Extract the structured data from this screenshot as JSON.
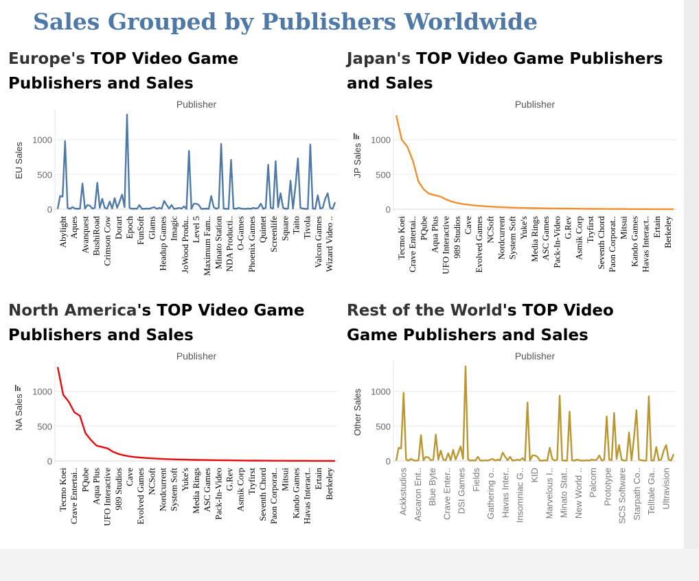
{
  "dashboard_title": "Sales Grouped by Publishers Worldwide",
  "chart_data": [
    {
      "type": "line",
      "title_region": "Europe's",
      "title_rest": " TOP Video Game Publishers and Sales",
      "header": "Publisher",
      "ylabel": "EU Sales",
      "ylim": [
        0,
        1400
      ],
      "yticks": [
        0,
        500,
        1000
      ],
      "color": "#4e79a7",
      "sorted_desc": false,
      "x_tick_style": "serif",
      "categories_labeled": [
        "Abylight",
        "Aques",
        "Avanquest",
        "BushiRoad",
        "Crimson Cow",
        "Dorart",
        "Epoch",
        "FunSoft",
        "Glams",
        "Headup Games",
        "Imagic",
        "JoWood Produ..",
        "Level 5",
        "Maximum Fam..",
        "Minato Station",
        "NDA Producti..",
        "O-Games",
        "Phoenix Games",
        "Quintet",
        "Screenlife",
        "Square",
        "Taito",
        "Tivola",
        "Valcon Games",
        "Wizard Video .."
      ],
      "values": [
        5,
        190,
        180,
        980,
        20,
        5,
        30,
        10,
        5,
        10,
        370,
        10,
        60,
        50,
        10,
        20,
        380,
        20,
        150,
        20,
        10,
        110,
        10,
        160,
        20,
        110,
        210,
        30,
        1360,
        20,
        5,
        10,
        5,
        60,
        5,
        5,
        10,
        5,
        20,
        30,
        5,
        20,
        10,
        120,
        60,
        10,
        60,
        5,
        10,
        20,
        10,
        40,
        5,
        840,
        5,
        80,
        80,
        60,
        5,
        5,
        10,
        5,
        190,
        30,
        5,
        20,
        940,
        10,
        5,
        5,
        710,
        10,
        5,
        20,
        10,
        5,
        5,
        10,
        5,
        20,
        10,
        20,
        80,
        5,
        20,
        640,
        20,
        10,
        690,
        30,
        230,
        20,
        5,
        10,
        410,
        10,
        330,
        730,
        20,
        10,
        5,
        5,
        930,
        10,
        5,
        200,
        10,
        20,
        150,
        230,
        20,
        5,
        100
      ]
    },
    {
      "type": "line",
      "title_region": "Japan's",
      "title_rest": " TOP Video Game Publishers and Sales",
      "header": "Publisher",
      "ylabel": "JP Sales",
      "ylim": [
        0,
        1400
      ],
      "yticks": [
        0,
        500,
        1000
      ],
      "color": "#f28e2b",
      "sorted_desc": true,
      "x_tick_style": "serif",
      "categories_labeled": [
        "Tecmo Koei",
        "Crave Entertai..",
        "PQube",
        "Aqua Plus",
        "UFO Interactive",
        "989 Studios",
        "Cave",
        "Evolved Games",
        "NCSoft",
        "Nordcurrent",
        "System Soft",
        "Yuke's",
        "Media Rings",
        "ASC Games",
        "Pack-In-Video",
        "G.Rev",
        "Asmik Corp",
        "Tryfirst",
        "Seventh Chord",
        "Paon Corporat..",
        "Mitsui",
        "Kando Games",
        "Havas Interact..",
        "Ertain",
        "Berkeley"
      ],
      "values": [
        1350,
        1000,
        900,
        700,
        400,
        280,
        220,
        200,
        180,
        140,
        110,
        90,
        75,
        65,
        55,
        48,
        42,
        37,
        33,
        29,
        26,
        23,
        21,
        19,
        17,
        15,
        14,
        13,
        12,
        11,
        10,
        9,
        8,
        7,
        6,
        5,
        5,
        4,
        4,
        3,
        3,
        3,
        2,
        2,
        2,
        2,
        1,
        1,
        1,
        1,
        0
      ]
    },
    {
      "type": "line",
      "title_region": "North America",
      "title_rest": "'s TOP Video Game Publishers and Sales",
      "header": "Publisher",
      "ylabel": "NA Sales",
      "ylim": [
        0,
        1400
      ],
      "yticks": [
        0,
        500,
        1000
      ],
      "color": "#e8090d",
      "sorted_desc": true,
      "x_tick_style": "serif",
      "categories_labeled": [
        "Tecmo Koei",
        "Crave Entertai..",
        "PQube",
        "Aqua Plus",
        "UFO Interactive",
        "989 Studios",
        "Cave",
        "Evolved Games",
        "NCSoft",
        "Nordcurrent",
        "System Soft",
        "Yuke's",
        "Media Rings",
        "ASC Games",
        "Pack-In-Video",
        "G.Rev",
        "Asmik Corp",
        "Tryfirst",
        "Seventh Chord",
        "Paon Corporat..",
        "Mitsui",
        "Kando Games",
        "Havas Interact..",
        "Ertain",
        "Berkeley"
      ],
      "values": [
        1350,
        950,
        850,
        700,
        650,
        400,
        300,
        220,
        200,
        180,
        130,
        100,
        80,
        65,
        55,
        48,
        42,
        37,
        33,
        29,
        26,
        23,
        21,
        19,
        17,
        15,
        14,
        13,
        12,
        11,
        10,
        9,
        8,
        7,
        6,
        5,
        5,
        4,
        4,
        3,
        3,
        3,
        2,
        2,
        2,
        2,
        1,
        1,
        1,
        1,
        0
      ]
    },
    {
      "type": "line",
      "title_region": "Rest of the World",
      "title_rest": "'s TOP Video Game Publishers and Sales",
      "header": "Publisher",
      "ylabel": "Other Sales",
      "ylim": [
        0,
        1400
      ],
      "yticks": [
        0,
        500,
        1000
      ],
      "color": "#b9962f",
      "sorted_desc": false,
      "x_tick_style": "sans",
      "categories_labeled": [
        "Ackkstudios",
        "Ascaron Ent..",
        "Blue Byte",
        "Crave Enter..",
        "DSI Games",
        "Fields",
        "Gathering o..",
        "Havas Inter..",
        "Insomniac G..",
        "KID",
        "Marvelous I..",
        "Minato Stat..",
        "New World ..",
        "Palcom",
        "Prototype",
        "SCS Software",
        "Starpath Co..",
        "Telltale Ga..",
        "Ultravision"
      ],
      "values": [
        5,
        190,
        180,
        980,
        20,
        5,
        30,
        10,
        5,
        10,
        370,
        10,
        60,
        50,
        10,
        20,
        380,
        20,
        150,
        20,
        10,
        110,
        10,
        160,
        20,
        110,
        210,
        30,
        1360,
        20,
        5,
        10,
        5,
        60,
        5,
        5,
        10,
        5,
        20,
        30,
        5,
        20,
        10,
        120,
        60,
        10,
        60,
        5,
        10,
        20,
        10,
        40,
        5,
        840,
        5,
        80,
        80,
        60,
        5,
        5,
        10,
        5,
        190,
        30,
        5,
        20,
        940,
        10,
        5,
        5,
        710,
        10,
        5,
        20,
        10,
        5,
        5,
        10,
        5,
        20,
        10,
        20,
        80,
        5,
        20,
        640,
        20,
        10,
        690,
        30,
        230,
        20,
        5,
        10,
        410,
        10,
        330,
        730,
        20,
        10,
        5,
        5,
        930,
        10,
        5,
        200,
        10,
        20,
        150,
        230,
        20,
        5,
        100
      ]
    }
  ]
}
